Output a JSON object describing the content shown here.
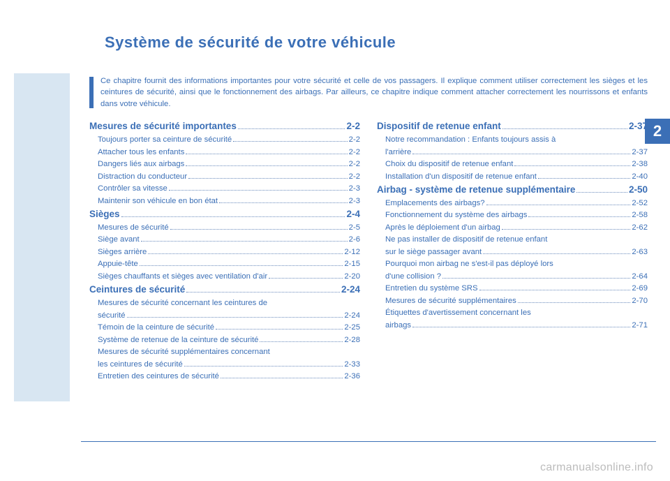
{
  "colors": {
    "accent": "#3b6fb6",
    "lightblue": "#d8e6f2",
    "watermark": "#bcbcbc",
    "white": "#ffffff"
  },
  "chapter_number": "2",
  "title": "Système de sécurité de votre véhicule",
  "intro": "Ce chapitre fournit des informations importantes pour votre sécurité et celle de vos passagers. Il explique comment utiliser correctement les sièges et les ceintures de sécurité, ainsi que le fonctionnement des airbags. Par ailleurs, ce chapitre indique comment attacher correctement les nourrissons et enfants dans votre véhicule.",
  "toc_left": [
    {
      "type": "sec",
      "label": "Mesures de sécurité importantes",
      "page": "2-2"
    },
    {
      "type": "sub",
      "label": "Toujours porter sa ceinture de sécurité",
      "page": "2-2"
    },
    {
      "type": "sub",
      "label": "Attacher tous les enfants",
      "page": "2-2"
    },
    {
      "type": "sub",
      "label": "Dangers liés aux airbags",
      "page": "2-2"
    },
    {
      "type": "sub",
      "label": "Distraction du conducteur",
      "page": "2-2"
    },
    {
      "type": "sub",
      "label": "Contrôler sa vitesse",
      "page": "2-3"
    },
    {
      "type": "sub",
      "label": "Maintenir son véhicule en bon état",
      "page": "2-3"
    },
    {
      "type": "sec",
      "label": "Sièges",
      "page": "2-4"
    },
    {
      "type": "sub",
      "label": "Mesures de sécurité",
      "page": "2-5"
    },
    {
      "type": "sub",
      "label": "Siège avant",
      "page": "2-6"
    },
    {
      "type": "sub",
      "label": "Sièges arrière",
      "page": "2-12"
    },
    {
      "type": "sub",
      "label": "Appuie-tête",
      "page": "2-15"
    },
    {
      "type": "sub",
      "label": "Sièges chauffants et sièges avec ventilation d'air",
      "page": "2-20"
    },
    {
      "type": "sec",
      "label": "Ceintures de sécurité",
      "page": "2-24"
    },
    {
      "type": "sub2",
      "label1": "Mesures de sécurité concernant les ceintures de",
      "label2": "sécurité",
      "page": "2-24"
    },
    {
      "type": "sub",
      "label": "Témoin de la ceinture de sécurité",
      "page": "2-25"
    },
    {
      "type": "sub",
      "label": "Système de retenue de la ceinture de sécurité",
      "page": "2-28"
    },
    {
      "type": "sub2",
      "label1": "Mesures de sécurité supplémentaires concernant",
      "label2": "les ceintures de sécurité",
      "page": "2-33"
    },
    {
      "type": "sub",
      "label": "Entretien des ceintures de sécurité",
      "page": "2-36"
    }
  ],
  "toc_right": [
    {
      "type": "sec",
      "label": "Dispositif de retenue enfant",
      "page": "2-37"
    },
    {
      "type": "sub2",
      "label1": "Notre recommandation : Enfants toujours assis à",
      "label2": "l'arrière",
      "page": "2-37"
    },
    {
      "type": "sub",
      "label": "Choix du dispositif de retenue enfant",
      "page": "2-38"
    },
    {
      "type": "sub",
      "label": "Installation d'un dispositif de retenue enfant",
      "page": "2-40"
    },
    {
      "type": "sec",
      "label": "Airbag - système de retenue supplémentaire",
      "page": "2-50"
    },
    {
      "type": "sub",
      "label": "Emplacements des airbags?",
      "page": "2-52"
    },
    {
      "type": "sub",
      "label": "Fonctionnement du système des airbags",
      "page": "2-58"
    },
    {
      "type": "sub",
      "label": "Après le déploiement d'un airbag",
      "page": "2-62"
    },
    {
      "type": "sub2",
      "label1": "Ne pas installer de dispositif de retenue enfant",
      "label2": "sur le siège passager avant",
      "page": "2-63"
    },
    {
      "type": "sub2",
      "label1": "Pourquoi mon airbag ne s'est-il pas déployé lors",
      "label2": "d'une collision ?",
      "page": "2-64"
    },
    {
      "type": "sub",
      "label": "Entretien du système SRS",
      "page": "2-69"
    },
    {
      "type": "sub",
      "label": "Mesures de sécurité supplémentaires",
      "page": "2-70"
    },
    {
      "type": "sub2",
      "label1": "Étiquettes d'avertissement concernant les",
      "label2": "airbags",
      "page": "2-71"
    }
  ],
  "watermark": "carmanualsonline.info"
}
